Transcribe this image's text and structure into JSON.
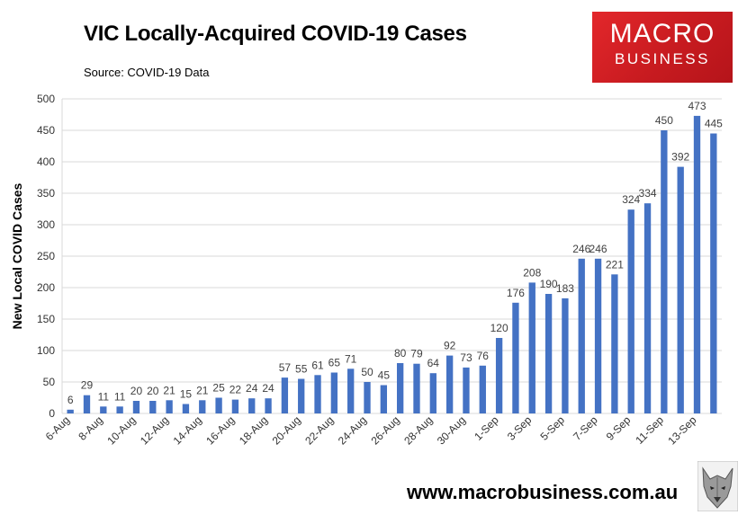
{
  "header": {
    "title": "VIC Locally-Acquired COVID-19 Cases",
    "source": "Source: COVID-19 Data"
  },
  "logo": {
    "line1": "MACRO",
    "line2": "BUSINESS",
    "color": "#d4202a"
  },
  "footer": {
    "website": "www.macrobusiness.com.au",
    "logo_icon": "wolf-head-icon"
  },
  "chart_data": {
    "type": "bar",
    "title": "VIC Locally-Acquired COVID-19 Cases",
    "ylabel": "New Local COVID Cases",
    "xlabel": "",
    "ylim": [
      0,
      500
    ],
    "yticks": [
      0,
      50,
      100,
      150,
      200,
      250,
      300,
      350,
      400,
      450,
      500
    ],
    "grid": true,
    "bar_color": "#4472c4",
    "categories": [
      "6-Aug",
      "7-Aug",
      "8-Aug",
      "9-Aug",
      "10-Aug",
      "11-Aug",
      "12-Aug",
      "13-Aug",
      "14-Aug",
      "15-Aug",
      "16-Aug",
      "17-Aug",
      "18-Aug",
      "19-Aug",
      "20-Aug",
      "21-Aug",
      "22-Aug",
      "23-Aug",
      "24-Aug",
      "25-Aug",
      "26-Aug",
      "27-Aug",
      "28-Aug",
      "29-Aug",
      "30-Aug",
      "31-Aug",
      "1-Sep",
      "2-Sep",
      "3-Sep",
      "4-Sep",
      "5-Sep",
      "6-Sep",
      "7-Sep",
      "8-Sep",
      "9-Sep",
      "10-Sep",
      "11-Sep",
      "12-Sep",
      "13-Sep",
      "14-Sep"
    ],
    "tick_labels": [
      "6-Aug",
      "8-Aug",
      "10-Aug",
      "12-Aug",
      "14-Aug",
      "16-Aug",
      "18-Aug",
      "20-Aug",
      "22-Aug",
      "24-Aug",
      "26-Aug",
      "28-Aug",
      "30-Aug",
      "1-Sep",
      "3-Sep",
      "5-Sep",
      "7-Sep",
      "9-Sep",
      "11-Sep",
      "13-Sep"
    ],
    "values": [
      6,
      29,
      11,
      11,
      20,
      20,
      21,
      15,
      21,
      25,
      22,
      24,
      24,
      57,
      55,
      61,
      65,
      71,
      50,
      45,
      80,
      79,
      64,
      92,
      73,
      76,
      120,
      176,
      208,
      190,
      183,
      246,
      246,
      221,
      324,
      334,
      450,
      392,
      473,
      445
    ]
  }
}
